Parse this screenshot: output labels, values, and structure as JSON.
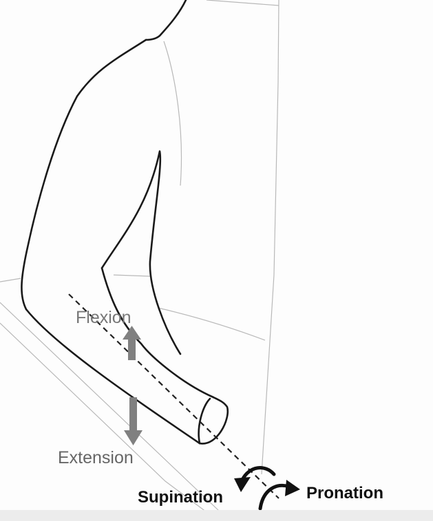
{
  "labels": {
    "flexion": "Flexion",
    "extension": "Extension",
    "supination": "Supination",
    "pronation": "Pronation"
  },
  "colors": {
    "outline": "#1a1a1a",
    "faint_line": "#b0b0b0",
    "motion_arrow": "#808080",
    "rotation_arrow": "#111111"
  }
}
